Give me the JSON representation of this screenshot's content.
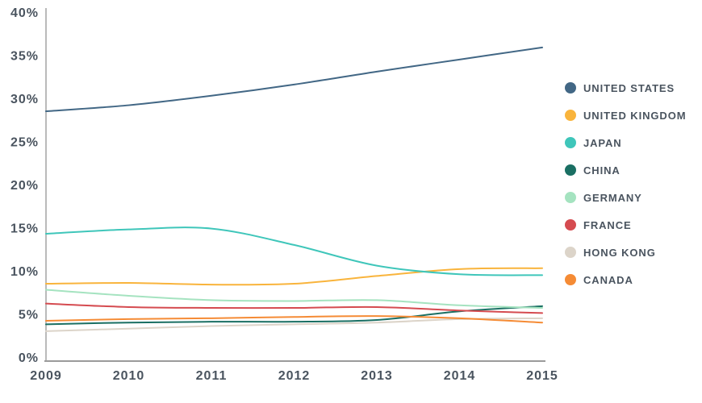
{
  "chart_data": {
    "type": "line",
    "title": "",
    "xlabel": "",
    "ylabel": "",
    "x": [
      2009,
      2010,
      2011,
      2012,
      2013,
      2014,
      2015
    ],
    "x_tick_labels": [
      "2009",
      "2010",
      "2011",
      "2012",
      "2013",
      "2014",
      "2015"
    ],
    "y_ticks": [
      0,
      5,
      10,
      15,
      20,
      25,
      30,
      35,
      40
    ],
    "y_tick_labels": [
      "0%",
      "5%",
      "10%",
      "15%",
      "20%",
      "25%",
      "30%",
      "35%",
      "40%"
    ],
    "ylim": [
      0,
      40
    ],
    "grid": false,
    "legend_position": "right",
    "series": [
      {
        "name": "UNITED STATES",
        "color": "#426785",
        "values": [
          28.5,
          29.2,
          30.3,
          31.6,
          33.1,
          34.5,
          35.9
        ]
      },
      {
        "name": "UNITED KINGDOM",
        "color": "#f9b43c",
        "values": [
          8.5,
          8.6,
          8.4,
          8.5,
          9.4,
          10.2,
          10.3
        ]
      },
      {
        "name": "JAPAN",
        "color": "#3fc6ba",
        "values": [
          14.3,
          14.8,
          14.9,
          13.0,
          10.6,
          9.6,
          9.5
        ]
      },
      {
        "name": "CHINA",
        "color": "#1a6f63",
        "values": [
          3.8,
          4.0,
          4.1,
          4.1,
          4.3,
          5.3,
          5.9
        ]
      },
      {
        "name": "GERMANY",
        "color": "#a5e3c0",
        "values": [
          7.8,
          7.1,
          6.6,
          6.5,
          6.6,
          6.0,
          5.7
        ]
      },
      {
        "name": "FRANCE",
        "color": "#d54b50",
        "values": [
          6.2,
          5.8,
          5.7,
          5.7,
          5.8,
          5.4,
          5.1
        ]
      },
      {
        "name": "HONG KONG",
        "color": "#dcd4c9",
        "values": [
          3.0,
          3.3,
          3.6,
          3.8,
          4.0,
          4.4,
          4.5
        ]
      },
      {
        "name": "CANADA",
        "color": "#f58b35",
        "values": [
          4.2,
          4.4,
          4.5,
          4.65,
          4.75,
          4.5,
          4.0
        ]
      }
    ]
  },
  "style": {
    "axis_line_color": "#a3a3a3",
    "baseline_color": "#9b9b9b",
    "text_color": "#4a545f",
    "background": "#ffffff"
  }
}
